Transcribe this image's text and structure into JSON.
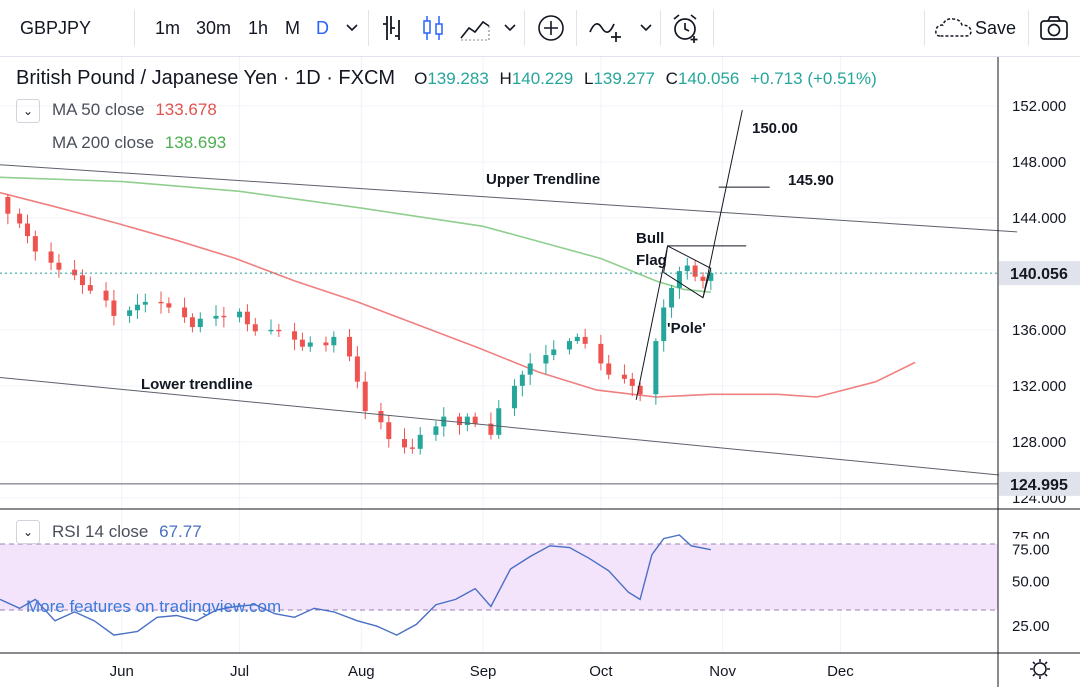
{
  "toolbar": {
    "symbol": "GBPJPY",
    "intervals": [
      "1m",
      "30m",
      "1h",
      "M",
      "D"
    ],
    "active_interval": "D",
    "save_label": "Save",
    "icons": [
      "chevron-down-icon",
      "bar-style-icon",
      "candles-icon",
      "area-chart-icon",
      "add-compare-icon",
      "indicators-icon",
      "alert-icon",
      "cloud-save-icon",
      "camera-icon"
    ]
  },
  "legend": {
    "title": "British Pound / Japanese Yen · 1D · FXCM",
    "o_label": "O",
    "o_value": "139.283",
    "h_label": "H",
    "h_value": "140.229",
    "l_label": "L",
    "l_value": "139.277",
    "c_label": "C",
    "c_value": "140.056",
    "change": "+0.713 (+0.51%)",
    "ma50_label": "MA 50 close",
    "ma50_value": "133.678",
    "ma200_label": "MA 200 close",
    "ma200_value": "138.693",
    "rsi_label": "RSI 14 close",
    "rsi_value": "67.77",
    "toggle_glyph": "⌄"
  },
  "watermark": "More features on tradingview.com",
  "colors": {
    "up": "#26a69a",
    "down": "#ef5350",
    "ma50": "#f08080",
    "ma200": "#90cf8f",
    "rsi": "#4a6fc4",
    "rsi_band": "#f3e4fb",
    "price_line": "#26a69a",
    "text": "#131722"
  },
  "chart_data": {
    "type": "candlestick",
    "symbol": "GBPJPY",
    "timeframe": "1D",
    "x_ticks": [
      "Jun",
      "Jul",
      "Aug",
      "Sep",
      "Oct",
      "Nov",
      "Dec"
    ],
    "y_ticks": [
      "124.000",
      "128.000",
      "132.000",
      "136.000",
      "140.000",
      "144.000",
      "148.000",
      "152.000"
    ],
    "ylim": [
      123.2,
      155.5
    ],
    "last_price": "140.056",
    "price_label_2": "124.995",
    "close_path": [
      [
        "2019-05-01",
        145.5
      ],
      [
        "2019-05-03",
        144.3
      ],
      [
        "2019-05-06",
        143.6
      ],
      [
        "2019-05-08",
        142.7
      ],
      [
        "2019-05-10",
        141.6
      ],
      [
        "2019-05-14",
        140.8
      ],
      [
        "2019-05-16",
        140.3
      ],
      [
        "2019-05-20",
        139.9
      ],
      [
        "2019-05-22",
        139.2
      ],
      [
        "2019-05-24",
        138.8
      ],
      [
        "2019-05-28",
        138.1
      ],
      [
        "2019-05-30",
        137.0
      ],
      [
        "2019-06-03",
        137.4
      ],
      [
        "2019-06-05",
        137.8
      ],
      [
        "2019-06-07",
        138.0
      ],
      [
        "2019-06-11",
        137.9
      ],
      [
        "2019-06-13",
        137.6
      ],
      [
        "2019-06-17",
        136.9
      ],
      [
        "2019-06-19",
        136.2
      ],
      [
        "2019-06-21",
        136.8
      ],
      [
        "2019-06-25",
        137.0
      ],
      [
        "2019-06-27",
        136.9
      ],
      [
        "2019-07-01",
        137.3
      ],
      [
        "2019-07-03",
        136.4
      ],
      [
        "2019-07-05",
        135.9
      ],
      [
        "2019-07-09",
        136.0
      ],
      [
        "2019-07-11",
        135.9
      ],
      [
        "2019-07-15",
        135.3
      ],
      [
        "2019-07-17",
        134.8
      ],
      [
        "2019-07-19",
        135.1
      ],
      [
        "2019-07-23",
        134.9
      ],
      [
        "2019-07-25",
        135.5
      ],
      [
        "2019-07-29",
        134.1
      ],
      [
        "2019-07-31",
        132.3
      ],
      [
        "2019-08-02",
        130.2
      ],
      [
        "2019-08-06",
        129.4
      ],
      [
        "2019-08-08",
        128.2
      ],
      [
        "2019-08-12",
        127.6
      ],
      [
        "2019-08-14",
        127.5
      ],
      [
        "2019-08-16",
        128.5
      ],
      [
        "2019-08-20",
        129.1
      ],
      [
        "2019-08-22",
        129.8
      ],
      [
        "2019-08-26",
        129.2
      ],
      [
        "2019-08-28",
        129.8
      ],
      [
        "2019-08-30",
        129.3
      ],
      [
        "2019-09-03",
        128.5
      ],
      [
        "2019-09-05",
        130.4
      ],
      [
        "2019-09-09",
        132.0
      ],
      [
        "2019-09-11",
        132.8
      ],
      [
        "2019-09-13",
        133.6
      ],
      [
        "2019-09-17",
        134.2
      ],
      [
        "2019-09-19",
        134.6
      ],
      [
        "2019-09-23",
        135.2
      ],
      [
        "2019-09-25",
        135.5
      ],
      [
        "2019-09-27",
        135.0
      ],
      [
        "2019-10-01",
        133.6
      ],
      [
        "2019-10-03",
        132.8
      ],
      [
        "2019-10-07",
        132.5
      ],
      [
        "2019-10-09",
        132.0
      ],
      [
        "2019-10-11",
        131.4
      ],
      [
        "2019-10-15",
        135.2
      ],
      [
        "2019-10-17",
        137.6
      ],
      [
        "2019-10-19",
        139.0
      ],
      [
        "2019-10-21",
        140.2
      ],
      [
        "2019-10-23",
        140.6
      ],
      [
        "2019-10-25",
        139.8
      ],
      [
        "2019-10-27",
        139.5
      ],
      [
        "2019-10-29",
        140.056
      ]
    ],
    "ma50": [
      [
        "2019-05-01",
        145.8
      ],
      [
        "2019-05-15",
        144.8
      ],
      [
        "2019-05-31",
        143.6
      ],
      [
        "2019-06-15",
        142.4
      ],
      [
        "2019-06-30",
        141.1
      ],
      [
        "2019-07-15",
        139.5
      ],
      [
        "2019-07-31",
        138.0
      ],
      [
        "2019-08-15",
        136.4
      ],
      [
        "2019-08-31",
        134.7
      ],
      [
        "2019-09-15",
        133.0
      ],
      [
        "2019-09-30",
        131.7
      ],
      [
        "2019-10-15",
        131.2
      ],
      [
        "2019-10-22",
        131.3
      ],
      [
        "2019-10-29",
        131.4
      ],
      [
        "2019-11-15",
        131.4
      ],
      [
        "2019-11-25",
        131.2
      ],
      [
        "2019-12-10",
        132.3
      ],
      [
        "2019-12-20",
        133.678
      ]
    ],
    "ma200": [
      [
        "2019-05-01",
        146.9
      ],
      [
        "2019-06-01",
        146.6
      ],
      [
        "2019-07-01",
        145.9
      ],
      [
        "2019-08-01",
        144.7
      ],
      [
        "2019-09-01",
        143.4
      ],
      [
        "2019-10-01",
        141.1
      ],
      [
        "2019-10-15",
        139.5
      ],
      [
        "2019-10-22",
        138.9
      ],
      [
        "2019-10-29",
        138.693
      ]
    ],
    "rsi": {
      "values": [
        [
          "2019-05-01",
          40
        ],
        [
          "2019-05-06",
          35
        ],
        [
          "2019-05-10",
          40
        ],
        [
          "2019-05-15",
          28
        ],
        [
          "2019-05-20",
          33
        ],
        [
          "2019-05-25",
          28
        ],
        [
          "2019-05-30",
          20
        ],
        [
          "2019-06-05",
          22
        ],
        [
          "2019-06-10",
          30
        ],
        [
          "2019-06-15",
          31
        ],
        [
          "2019-06-20",
          28
        ],
        [
          "2019-06-25",
          34
        ],
        [
          "2019-06-30",
          36
        ],
        [
          "2019-07-05",
          37
        ],
        [
          "2019-07-10",
          32
        ],
        [
          "2019-07-15",
          30
        ],
        [
          "2019-07-20",
          35
        ],
        [
          "2019-07-25",
          33
        ],
        [
          "2019-07-31",
          28
        ],
        [
          "2019-08-05",
          25
        ],
        [
          "2019-08-10",
          20
        ],
        [
          "2019-08-15",
          26
        ],
        [
          "2019-08-20",
          37
        ],
        [
          "2019-08-25",
          40
        ],
        [
          "2019-08-30",
          46
        ],
        [
          "2019-09-03",
          36
        ],
        [
          "2019-09-08",
          57
        ],
        [
          "2019-09-13",
          64
        ],
        [
          "2019-09-18",
          70
        ],
        [
          "2019-09-23",
          69
        ],
        [
          "2019-09-28",
          63
        ],
        [
          "2019-10-03",
          56
        ],
        [
          "2019-10-08",
          44
        ],
        [
          "2019-10-11",
          40
        ],
        [
          "2019-10-14",
          65
        ],
        [
          "2019-10-17",
          74
        ],
        [
          "2019-10-21",
          76
        ],
        [
          "2019-10-24",
          70
        ],
        [
          "2019-10-29",
          67.77
        ]
      ],
      "y_ticks": [
        "25.00",
        "50.00",
        "75.00"
      ],
      "band": [
        30,
        70
      ],
      "ylim": [
        10,
        90
      ]
    },
    "annotations": {
      "upper_trendline": "Upper Trendline",
      "lower_trendline": "Lower trendline",
      "bull_flag": "Bull",
      "bull_flag_2": "Flag",
      "pole": "'Pole'",
      "target_1": "150.00",
      "target_2": "145.90"
    }
  }
}
